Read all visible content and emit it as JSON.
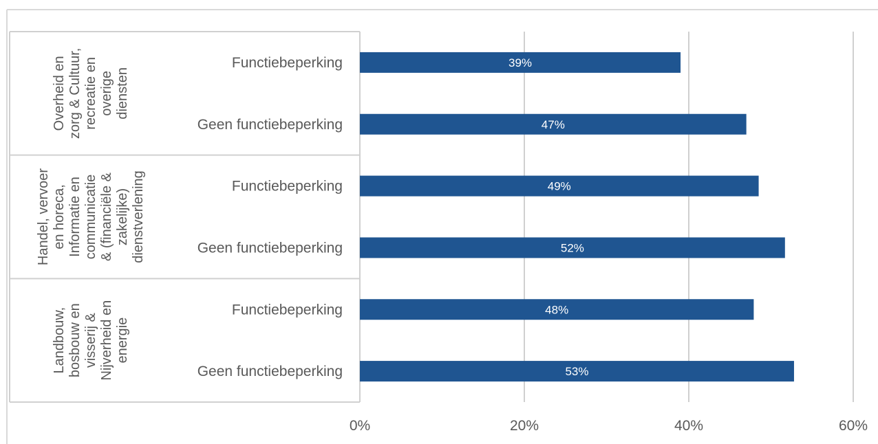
{
  "chart_data": {
    "type": "bar",
    "orientation": "horizontal",
    "xlim": [
      0,
      60
    ],
    "x_ticks": [
      "0%",
      "20%",
      "40%",
      "60%"
    ],
    "grid": true,
    "bar_color": "#1f5591",
    "groups": [
      {
        "label_lines": [
          "Overheid en",
          "zorg & Cultuur,",
          "recreatie en",
          "overige",
          "diensten"
        ],
        "bars": [
          {
            "category": "Functiebeperking",
            "value": 39,
            "label": "39%"
          },
          {
            "category": "Geen functiebeperking",
            "value": 47,
            "label": "47%"
          }
        ]
      },
      {
        "label_lines": [
          "Handel, vervoer",
          "en horeca,",
          "Informatie en",
          "communicatie",
          "& (financiële &",
          "zakelijke)",
          "dienstverlening"
        ],
        "bars": [
          {
            "category": "Functiebeperking",
            "value": 48.5,
            "label": "49%"
          },
          {
            "category": "Geen functiebeperking",
            "value": 51.7,
            "label": "52%"
          }
        ]
      },
      {
        "label_lines": [
          "Landbouw,",
          "bosbouw en",
          "visserij &",
          "Nijverheid en",
          "energie"
        ],
        "bars": [
          {
            "category": "Functiebeperking",
            "value": 47.9,
            "label": "48%"
          },
          {
            "category": "Geen functiebeperking",
            "value": 52.8,
            "label": "53%"
          }
        ]
      }
    ]
  }
}
